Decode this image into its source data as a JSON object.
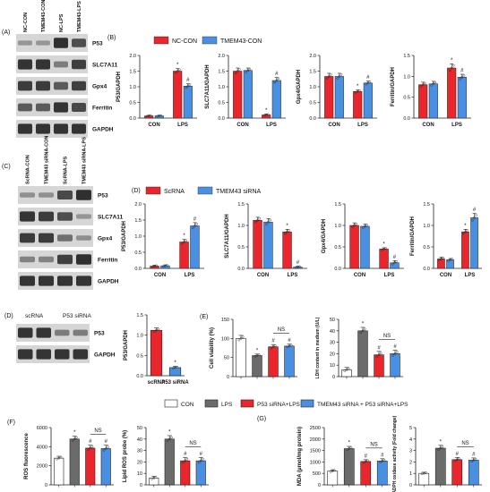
{
  "colors": {
    "red": "#e8262c",
    "blue": "#4a90e2",
    "white": "#ffffff",
    "grey": "#6b6b6b",
    "axis": "#222222",
    "blot_bg": "#d6d6d6",
    "band": "#1e1e1e"
  },
  "panels": {
    "A": {
      "label": "(A)",
      "lanes": [
        "NC-CON",
        "TMEM43-CON",
        "NC-LPS",
        "TMEM43-LPS"
      ],
      "proteins": [
        "P53",
        "SLC7A11",
        "Gpx4",
        "Ferritin",
        "GAPDH"
      ],
      "band_levels": [
        [
          0.15,
          0.15,
          0.95,
          0.7
        ],
        [
          0.9,
          0.9,
          0.35,
          0.8
        ],
        [
          0.85,
          0.85,
          0.6,
          0.8
        ],
        [
          0.6,
          0.6,
          0.9,
          0.75
        ],
        [
          0.9,
          0.9,
          0.9,
          0.9
        ]
      ]
    },
    "B": {
      "label": "(B)",
      "legend": [
        "NC-CON",
        "TMEM43-CON"
      ]
    },
    "C": {
      "label": "(C)",
      "lanes": [
        "ScRNA-CON",
        "TMEM43 siRNA-CON",
        "ScRNA-LPS",
        "TMEM43 siRNA-LPS"
      ],
      "proteins": [
        "P53",
        "SLC7A11",
        "Gpx4",
        "Ferritin",
        "GAPDH"
      ],
      "band_levels": [
        [
          0.2,
          0.2,
          0.75,
          0.95
        ],
        [
          0.9,
          0.85,
          0.7,
          0.15
        ],
        [
          0.85,
          0.85,
          0.45,
          0.2
        ],
        [
          0.3,
          0.3,
          0.8,
          0.95
        ],
        [
          0.9,
          0.9,
          0.9,
          0.9
        ]
      ]
    },
    "D_bars": {
      "label": "(D)",
      "legend": [
        "ScRNA",
        "TMEM43 siRNA"
      ]
    },
    "D_blot": {
      "label": "(D)",
      "lanes": [
        "scRNA",
        "P53 siRNA"
      ],
      "proteins": [
        "P53",
        "GAPDH"
      ],
      "band_levels": [
        [
          0.9,
          0.9,
          0.35,
          0.35
        ],
        [
          0.9,
          0.9,
          0.9,
          0.9
        ]
      ]
    },
    "E": {
      "label": "(E)"
    },
    "F": {
      "label": "(F)"
    },
    "G": {
      "label": "(G)"
    },
    "legend_4group": [
      "CON",
      "LPS",
      "P53 siRNA+LPS",
      "TMEM43 siRNA + P53 siRNA+LPS"
    ]
  },
  "chart_data": [
    {
      "id": "B1",
      "type": "bar",
      "ylabel": "P53/GAPDH",
      "ylim": [
        0,
        2.0
      ],
      "yticks": [
        "0.0",
        "0.5",
        "1.0",
        "1.5",
        "2.0"
      ],
      "categories": [
        "CON",
        "LPS"
      ],
      "series": [
        {
          "name": "NC-CON",
          "values": [
            0.07,
            1.5
          ]
        },
        {
          "name": "TMEM43-CON",
          "values": [
            0.07,
            1.02
          ]
        }
      ],
      "errors": [
        [
          0.02,
          0.08
        ],
        [
          0.02,
          0.08
        ]
      ],
      "marks": [
        [
          "",
          "*"
        ],
        [
          "",
          "#"
        ]
      ]
    },
    {
      "id": "B2",
      "type": "bar",
      "ylabel": "SLC7A11/GAPDH",
      "ylim": [
        0,
        2.0
      ],
      "yticks": [
        "0.0",
        "0.5",
        "1.0",
        "1.5",
        "2.0"
      ],
      "categories": [
        "CON",
        "LPS"
      ],
      "series": [
        {
          "name": "NC-CON",
          "values": [
            1.5,
            0.1
          ]
        },
        {
          "name": "TMEM43-CON",
          "values": [
            1.52,
            1.2
          ]
        }
      ],
      "errors": [
        [
          0.1,
          0.03
        ],
        [
          0.08,
          0.1
        ]
      ],
      "marks": [
        [
          "",
          "*"
        ],
        [
          "",
          "#"
        ]
      ]
    },
    {
      "id": "B3",
      "type": "bar",
      "ylabel": "Gpx4/GAPDH",
      "ylim": [
        0,
        2.0
      ],
      "yticks": [
        "0.0",
        "0.5",
        "1.0",
        "1.5",
        "2.0"
      ],
      "categories": [
        "CON",
        "LPS"
      ],
      "series": [
        {
          "name": "NC-CON",
          "values": [
            1.33,
            0.85
          ]
        },
        {
          "name": "TMEM43-CON",
          "values": [
            1.33,
            1.12
          ]
        }
      ],
      "errors": [
        [
          0.1,
          0.05
        ],
        [
          0.1,
          0.06
        ]
      ],
      "marks": [
        [
          "",
          "*"
        ],
        [
          "",
          "#"
        ]
      ]
    },
    {
      "id": "B4",
      "type": "bar",
      "ylabel": "Ferritin/GAPDH",
      "ylim": [
        0,
        1.5
      ],
      "yticks": [
        "0.0",
        "0.5",
        "1.0",
        "1.5"
      ],
      "categories": [
        "CON",
        "LPS"
      ],
      "series": [
        {
          "name": "NC-CON",
          "values": [
            0.8,
            1.2
          ]
        },
        {
          "name": "TMEM43-CON",
          "values": [
            0.82,
            0.98
          ]
        }
      ],
      "errors": [
        [
          0.06,
          0.1
        ],
        [
          0.06,
          0.07
        ]
      ],
      "marks": [
        [
          "",
          "*"
        ],
        [
          "",
          "#"
        ]
      ]
    },
    {
      "id": "D1",
      "type": "bar",
      "ylabel": "P53/GAPDH",
      "ylim": [
        0,
        2.0
      ],
      "yticks": [
        "0.0",
        "0.5",
        "1.0",
        "1.5",
        "2.0"
      ],
      "categories": [
        "CON",
        "LPS"
      ],
      "series": [
        {
          "name": "ScRNA",
          "values": [
            0.07,
            0.82
          ]
        },
        {
          "name": "TMEM43 siRNA",
          "values": [
            0.08,
            1.32
          ]
        }
      ],
      "errors": [
        [
          0.03,
          0.08
        ],
        [
          0.03,
          0.1
        ]
      ],
      "marks": [
        [
          "",
          "*"
        ],
        [
          "",
          "#"
        ]
      ]
    },
    {
      "id": "D2",
      "type": "bar",
      "ylabel": "SLC7A11/GAPDH",
      "ylim": [
        0,
        1.5
      ],
      "yticks": [
        "0.0",
        "0.5",
        "1.0",
        "1.5"
      ],
      "categories": [
        "CON",
        "LPS"
      ],
      "series": [
        {
          "name": "ScRNA",
          "values": [
            1.12,
            0.85
          ]
        },
        {
          "name": "TMEM43 siRNA",
          "values": [
            1.08,
            0.03
          ]
        }
      ],
      "errors": [
        [
          0.07,
          0.06
        ],
        [
          0.08,
          0.02
        ]
      ],
      "marks": [
        [
          "",
          "*"
        ],
        [
          "",
          "#"
        ]
      ]
    },
    {
      "id": "D3",
      "type": "bar",
      "ylabel": "Gpx4/GAPDH",
      "ylim": [
        0,
        1.5
      ],
      "yticks": [
        "0.0",
        "0.5",
        "1.0",
        "1.5"
      ],
      "categories": [
        "CON",
        "LPS"
      ],
      "series": [
        {
          "name": "ScRNA",
          "values": [
            1.0,
            0.45
          ]
        },
        {
          "name": "TMEM43 siRNA",
          "values": [
            0.98,
            0.13
          ]
        }
      ],
      "errors": [
        [
          0.06,
          0.03
        ],
        [
          0.05,
          0.05
        ]
      ],
      "marks": [
        [
          "",
          "*"
        ],
        [
          "",
          "#"
        ]
      ]
    },
    {
      "id": "D4",
      "type": "bar",
      "ylabel": "Ferritin/GAPDH",
      "ylim": [
        0,
        1.5
      ],
      "yticks": [
        "0.0",
        "0.5",
        "1.0",
        "1.5"
      ],
      "categories": [
        "CON",
        "LPS"
      ],
      "series": [
        {
          "name": "ScRNA",
          "values": [
            0.22,
            0.85
          ]
        },
        {
          "name": "TMEM43 siRNA",
          "values": [
            0.2,
            1.18
          ]
        }
      ],
      "errors": [
        [
          0.04,
          0.06
        ],
        [
          0.03,
          0.1
        ]
      ],
      "marks": [
        [
          "",
          "*"
        ],
        [
          "",
          "#"
        ]
      ]
    },
    {
      "id": "D5",
      "type": "bar",
      "ylabel": "P53/GAPDH",
      "ylim": [
        0,
        1.5
      ],
      "yticks": [
        "0.0",
        "0.5",
        "1.0",
        "1.5"
      ],
      "categories": [
        "scRNA",
        "P53 siRNA"
      ],
      "values": [
        1.12,
        0.2
      ],
      "errors": [
        0.06,
        0.03
      ],
      "marks": [
        "",
        "*"
      ]
    },
    {
      "id": "E1",
      "type": "bar",
      "ylabel": "Cell viability (%)",
      "ylim": [
        0,
        150
      ],
      "yticks": [
        "0",
        "50",
        "100",
        "150"
      ],
      "categories": [
        "CON",
        "LPS",
        "P53 siRNA+LPS",
        "TMEM43 siRNA + P53 siRNA+LPS"
      ],
      "values": [
        100,
        55,
        78,
        80
      ],
      "errors": [
        8,
        4,
        6,
        5
      ],
      "marks": [
        "",
        "*",
        "#",
        "#"
      ],
      "ns": "NS"
    },
    {
      "id": "E2",
      "type": "bar",
      "ylabel": "LDH content in medium (U/L)",
      "ylim": [
        0,
        50
      ],
      "yticks": [
        "0",
        "10",
        "20",
        "30",
        "40",
        "50"
      ],
      "categories": [
        "CON",
        "LPS",
        "P53 siRNA+LPS",
        "TMEM43 siRNA + P53 siRNA+LPS"
      ],
      "values": [
        6,
        40,
        19,
        20
      ],
      "errors": [
        2,
        3,
        3,
        3
      ],
      "marks": [
        "",
        "*",
        "#",
        "#"
      ],
      "ns": "NS"
    },
    {
      "id": "F1",
      "type": "bar",
      "ylabel": "ROS fluorescence",
      "ylim": [
        0,
        6000
      ],
      "yticks": [
        "0",
        "2000",
        "4000",
        "6000"
      ],
      "categories": [
        "CON",
        "LPS",
        "P53 siRNA+LPS",
        "TMEM43 siRNA + P53 siRNA+LPS"
      ],
      "values": [
        2800,
        4800,
        3850,
        3800
      ],
      "errors": [
        200,
        300,
        300,
        350
      ],
      "marks": [
        "",
        "*",
        "#",
        "#"
      ],
      "ns": "NS"
    },
    {
      "id": "F2",
      "type": "bar",
      "ylabel": "Lipid ROS probe (%)",
      "ylim": [
        0,
        50
      ],
      "yticks": [
        "0",
        "10",
        "20",
        "30",
        "40",
        "50"
      ],
      "categories": [
        "CON",
        "LPS",
        "P53 siRNA+LPS",
        "TMEM43 siRNA + P53 siRNA+LPS"
      ],
      "values": [
        6,
        40,
        21,
        21
      ],
      "errors": [
        1.5,
        3,
        3,
        3
      ],
      "marks": [
        "",
        "*",
        "#",
        "#"
      ],
      "ns": "NS"
    },
    {
      "id": "G1",
      "type": "bar",
      "ylabel": "MDA (μmol/mg protein)",
      "ylim": [
        0,
        2500
      ],
      "yticks": [
        "0",
        "500",
        "1000",
        "1500",
        "2000",
        "2500"
      ],
      "categories": [
        "CON",
        "LPS",
        "P53 siRNA+LPS",
        "TMEM43 siRNA + P53 siRNA+LPS"
      ],
      "values": [
        600,
        1580,
        1020,
        1040
      ],
      "errors": [
        60,
        100,
        80,
        100
      ],
      "marks": [
        "",
        "*",
        "#",
        "#"
      ],
      "ns": "NS"
    },
    {
      "id": "G2",
      "type": "bar",
      "ylabel": "NADPH oxidase activity (Fold change)",
      "ylim": [
        0,
        5
      ],
      "yticks": [
        "0",
        "1",
        "2",
        "3",
        "4",
        "5"
      ],
      "categories": [
        "CON",
        "LPS",
        "P53 siRNA+LPS",
        "TMEM43 siRNA + P53 siRNA+LPS"
      ],
      "values": [
        1.0,
        3.2,
        2.2,
        2.15
      ],
      "errors": [
        0.1,
        0.25,
        0.2,
        0.2
      ],
      "marks": [
        "",
        "*",
        "#",
        "#"
      ],
      "ns": "NS"
    }
  ]
}
